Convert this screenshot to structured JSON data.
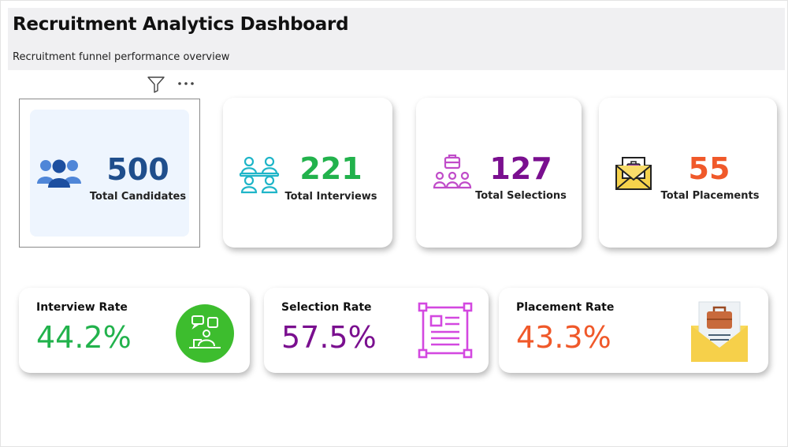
{
  "header": {
    "title": "Recruitment Analytics Dashboard",
    "subtitle": "Recruitment funnel performance overview"
  },
  "visual_tools": [
    "filter-icon",
    "more-options-icon"
  ],
  "kpis": [
    {
      "value": "500",
      "label": "Total Candidates",
      "color": "#1f4e8c",
      "icon": "people-group-icon"
    },
    {
      "value": "221",
      "label": "Total Interviews",
      "color": "#22b24c",
      "icon": "interview-group-icon"
    },
    {
      "value": "127",
      "label": "Total Selections",
      "color": "#7a0f8f",
      "icon": "selection-team-icon"
    },
    {
      "value": "55",
      "label": "Total Placements",
      "color": "#f0592a",
      "icon": "envelope-briefcase-icon"
    }
  ],
  "rates": [
    {
      "label": "Interview Rate",
      "value": "44.2%",
      "color": "#22b24c",
      "icon": "interview-chat-icon"
    },
    {
      "label": "Selection Rate",
      "value": "57.5%",
      "color": "#7a0f8f",
      "icon": "document-frame-icon"
    },
    {
      "label": "Placement Rate",
      "value": "43.3%",
      "color": "#f0592a",
      "icon": "envelope-briefcase-icon"
    }
  ]
}
